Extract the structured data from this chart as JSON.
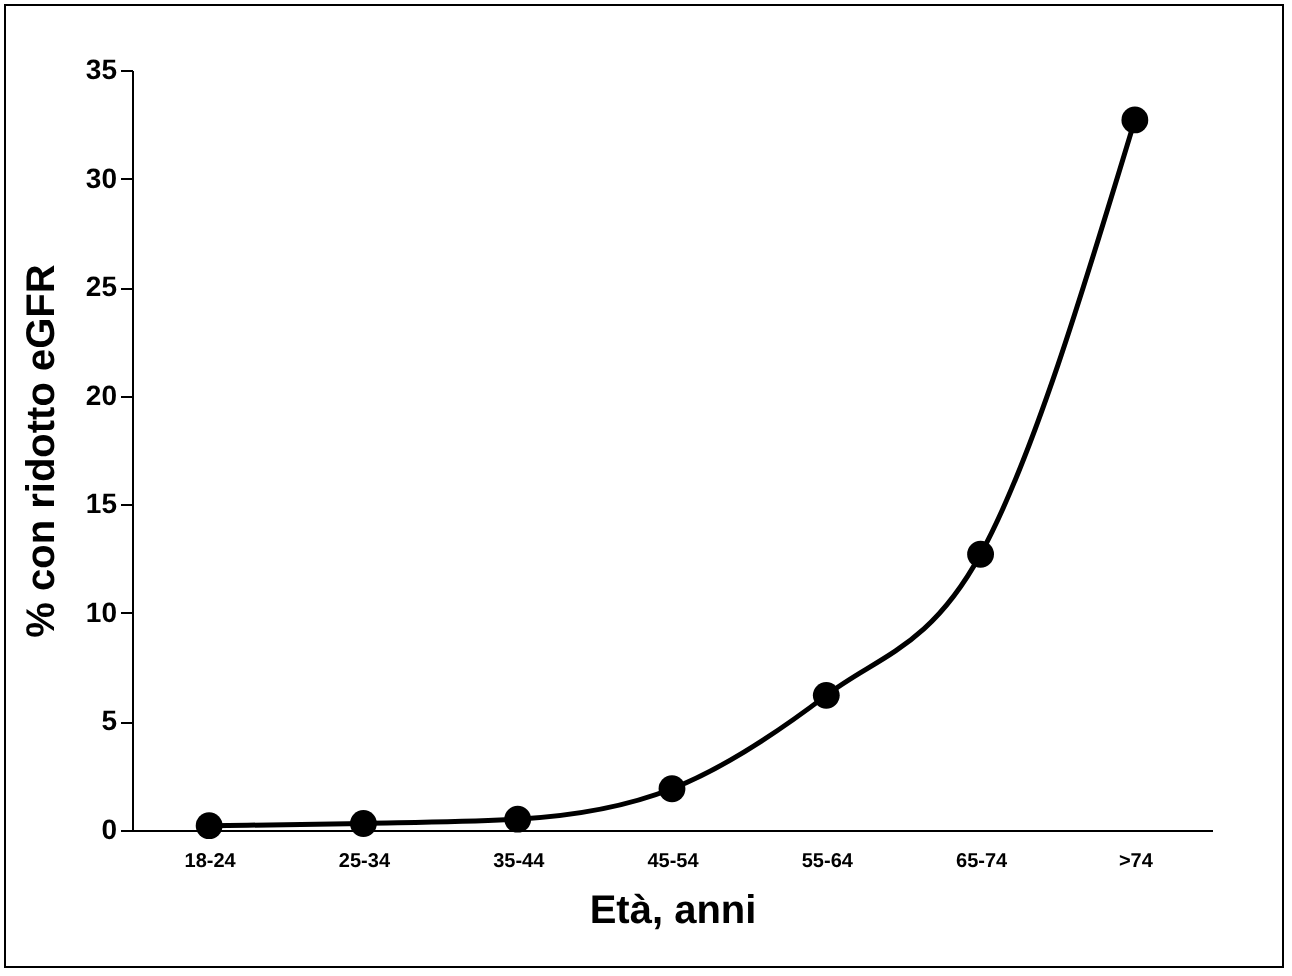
{
  "chart_data": {
    "type": "line",
    "xlabel": "Età, anni",
    "ylabel": "% con ridotto eGFR",
    "categories": [
      "18-24",
      "25-34",
      "35-44",
      "45-54",
      "55-64",
      "65-74",
      ">74"
    ],
    "series": [
      {
        "color": "#000000",
        "values": [
          0.2,
          0.3,
          0.5,
          1.9,
          6.2,
          12.7,
          32.7
        ]
      }
    ],
    "ylim": [
      0,
      35
    ],
    "yticks": [
      0,
      5,
      10,
      15,
      20,
      25,
      30,
      35
    ],
    "grid": false,
    "legend": false,
    "marker": "circle",
    "line_style": "solid"
  }
}
